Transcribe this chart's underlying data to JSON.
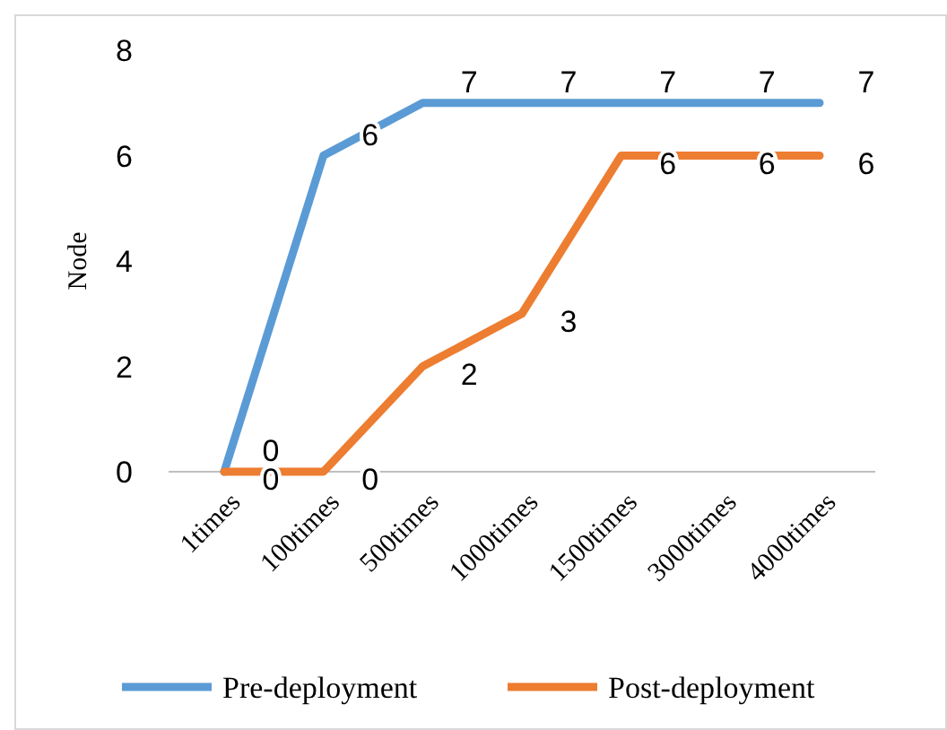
{
  "chart_data": {
    "type": "line",
    "ylabel": "Node",
    "categories": [
      "1times",
      "100times",
      "500times",
      "1000times",
      "1500times",
      "3000times",
      "4000times"
    ],
    "series": [
      {
        "name": "Pre-deployment",
        "color": "#5b9bd5",
        "values": [
          0,
          6,
          7,
          7,
          7,
          7,
          7
        ]
      },
      {
        "name": "Post-deployment",
        "color": "#ed7d31",
        "values": [
          0,
          0,
          2,
          3,
          6,
          6,
          6
        ]
      }
    ],
    "ylim": [
      0,
      8
    ],
    "yticks": [
      0,
      2,
      4,
      6,
      8
    ],
    "grid": false,
    "legend": "bottom",
    "data_labels": true,
    "marker": "none",
    "line_style": "solid"
  }
}
